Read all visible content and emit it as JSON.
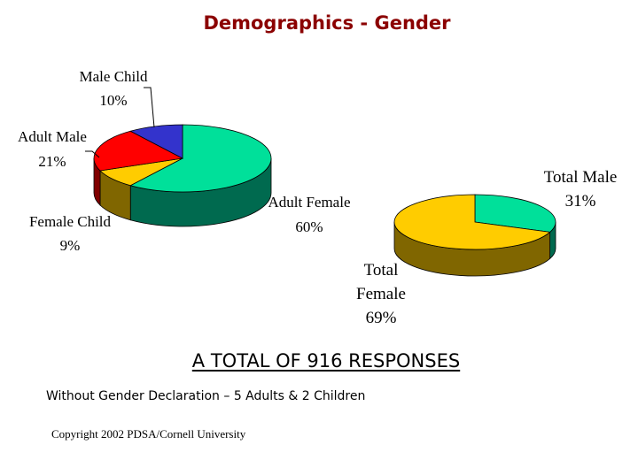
{
  "title": "Demographics - Gender",
  "chart_data": [
    {
      "type": "pie",
      "slices": [
        {
          "label": "Adult Female",
          "value": 60,
          "value_label": "60%",
          "color": "#00e09a",
          "side_color": "#006a4f"
        },
        {
          "label": "Female Child",
          "value": 9,
          "value_label": "9%",
          "color": "#ffcc00",
          "side_color": "#806600"
        },
        {
          "label": "Adult Male",
          "value": 21,
          "value_label": "21%",
          "color": "#ff0000",
          "side_color": "#800000"
        },
        {
          "label": "Male Child",
          "value": 10,
          "value_label": "10%",
          "color": "#3333cc",
          "side_color": "#1a1a66"
        }
      ]
    },
    {
      "type": "pie",
      "slices": [
        {
          "label": "Total Male",
          "value": 31,
          "value_label": "31%",
          "color": "#00e09a",
          "side_color": "#006a4f"
        },
        {
          "label": "Total Female",
          "label_lines": [
            "Total",
            "Female"
          ],
          "value": 69,
          "value_label": "69%",
          "color": "#ffcc00",
          "side_color": "#806600"
        }
      ]
    }
  ],
  "footer": {
    "total": "A TOTAL OF 916 RESPONSES",
    "note": "Without Gender Declaration – 5 Adults & 2 Children",
    "copyright": "Copyright 2002  PDSA/Cornell University"
  }
}
